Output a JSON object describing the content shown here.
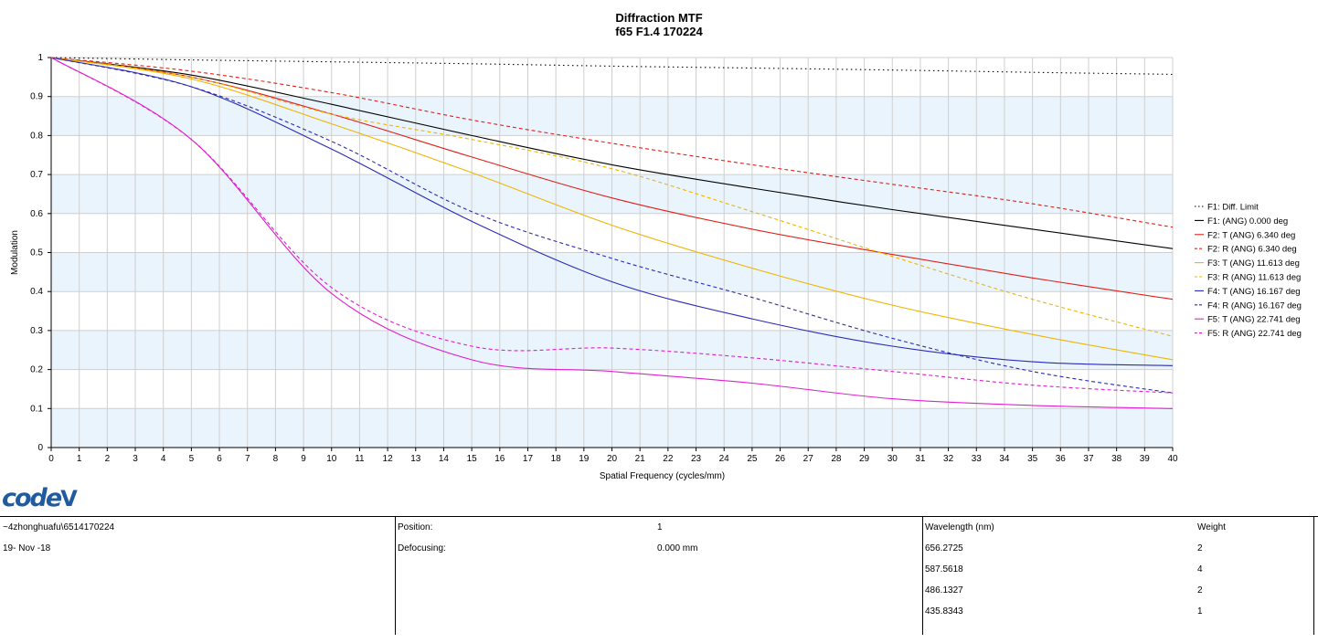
{
  "chart_data": {
    "type": "line",
    "title": "Diffraction MTF",
    "subtitle": "f65 F1.4 170224",
    "xlabel": "Spatial Frequency (cycles/mm)",
    "ylabel": "Modulation",
    "xlim": [
      0,
      40
    ],
    "ylim": [
      0,
      1
    ],
    "x_ticks": [
      "0",
      "1",
      "2",
      "3",
      "4",
      "5",
      "6",
      "7",
      "8",
      "9",
      "10",
      "11",
      "12",
      "13",
      "14",
      "15",
      "16",
      "17",
      "18",
      "19",
      "20",
      "21",
      "22",
      "23",
      "24",
      "25",
      "26",
      "27",
      "28",
      "29",
      "30",
      "31",
      "32",
      "33",
      "34",
      "35",
      "36",
      "37",
      "38",
      "39",
      "40"
    ],
    "y_ticks": [
      "0",
      "0.1",
      "0.2",
      "0.3",
      "0.4",
      "0.5",
      "0.6",
      "0.7",
      "0.8",
      "0.9",
      "1"
    ],
    "grid": true,
    "legend_position": "right",
    "x": [
      0,
      5,
      10,
      15,
      20,
      25,
      30,
      35,
      40
    ],
    "series": [
      {
        "name": "F1: Diff. Limit",
        "color": "#000000",
        "style": "dotted",
        "values": [
          1.0,
          0.994,
          0.989,
          0.984,
          0.978,
          0.973,
          0.968,
          0.962,
          0.957
        ]
      },
      {
        "name": "F1: (ANG) 0.000 deg",
        "color": "#000000",
        "style": "solid",
        "values": [
          1.0,
          0.955,
          0.88,
          0.8,
          0.725,
          0.665,
          0.61,
          0.56,
          0.51
        ]
      },
      {
        "name": "F2: T (ANG) 6.340 deg",
        "color": "#e0201a",
        "style": "solid",
        "values": [
          1.0,
          0.95,
          0.855,
          0.745,
          0.64,
          0.56,
          0.495,
          0.435,
          0.38
        ]
      },
      {
        "name": "F2: R (ANG) 6.340 deg",
        "color": "#e0201a",
        "style": "dashed",
        "values": [
          1.0,
          0.965,
          0.91,
          0.84,
          0.78,
          0.725,
          0.675,
          0.625,
          0.565
        ]
      },
      {
        "name": "F3: T (ANG) 11.613 deg",
        "color": "#f0b400",
        "style": "solid",
        "values": [
          1.0,
          0.945,
          0.83,
          0.705,
          0.57,
          0.46,
          0.365,
          0.29,
          0.225
        ]
      },
      {
        "name": "F3: R (ANG) 11.613 deg",
        "color": "#f0b400",
        "style": "dashed",
        "values": [
          1.0,
          0.95,
          0.855,
          0.79,
          0.715,
          0.605,
          0.49,
          0.38,
          0.285
        ]
      },
      {
        "name": "F4: T (ANG) 16.167 deg",
        "color": "#2a2ab8",
        "style": "solid",
        "values": [
          1.0,
          0.925,
          0.765,
          0.58,
          0.425,
          0.33,
          0.26,
          0.22,
          0.21
        ]
      },
      {
        "name": "F4: R (ANG) 16.167 deg",
        "color": "#2a2ab8",
        "style": "dashed",
        "values": [
          1.0,
          0.925,
          0.785,
          0.605,
          0.485,
          0.385,
          0.28,
          0.195,
          0.14
        ]
      },
      {
        "name": "F5: T (ANG) 22.741 deg",
        "color": "#e020d0",
        "style": "solid",
        "values": [
          1.0,
          0.79,
          0.395,
          0.225,
          0.195,
          0.165,
          0.125,
          0.108,
          0.1
        ]
      },
      {
        "name": "F5: R (ANG) 22.741 deg",
        "color": "#e020d0",
        "style": "dashed",
        "values": [
          1.0,
          0.79,
          0.41,
          0.26,
          0.255,
          0.23,
          0.195,
          0.16,
          0.14
        ]
      }
    ]
  },
  "logo": {
    "main": "code",
    "suffix": "V"
  },
  "footer": {
    "path": "~4zhonghuafu\\6514170224",
    "date": "19- Nov -18",
    "position_label": "Position:",
    "position_value": "1",
    "defocusing_label": "Defocusing:",
    "defocusing_value": "0.000 mm",
    "wavelength_header": "Wavelength (nm)",
    "weight_header": "Weight",
    "wavelengths": [
      "656.2725",
      "587.5618",
      "486.1327",
      "435.8343"
    ],
    "weights": [
      "2",
      "4",
      "2",
      "1"
    ]
  }
}
